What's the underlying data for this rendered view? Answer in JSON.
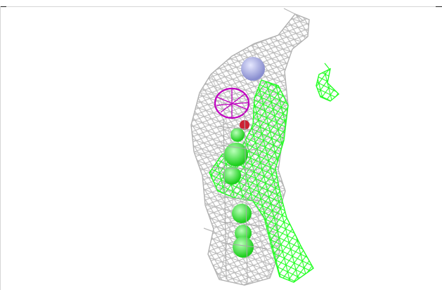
{
  "viewer": {
    "background": "#ffffff",
    "colors": {
      "density_mesh": "#b9b9b9",
      "difference_mesh": "#22ff22",
      "ring_mesh": "#c000c0",
      "atom_nitrogen": "#9a9ee0",
      "atom_carbon": "#33ee33",
      "atom_oxygen": "#cc2233"
    },
    "icons": [
      "molecule-viewport-icon"
    ]
  }
}
